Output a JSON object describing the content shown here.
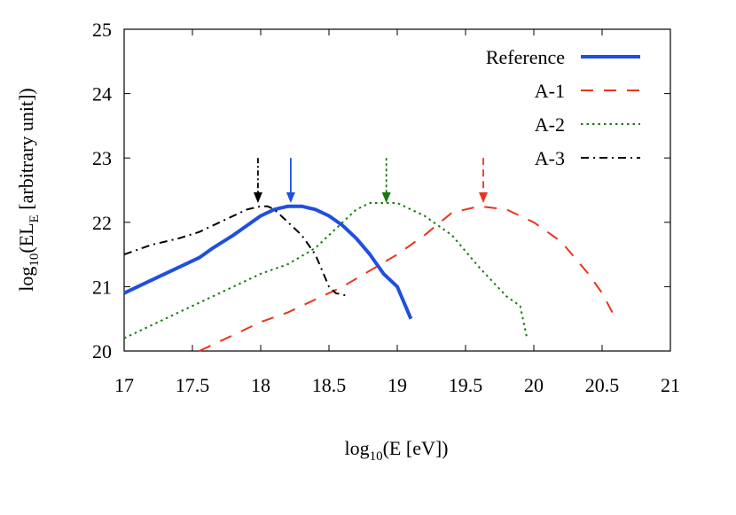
{
  "chart_data": {
    "type": "line",
    "title": "",
    "xlabel": {
      "base": "log",
      "sub": "10",
      "rest": "(E [eV])"
    },
    "ylabel": {
      "base": "log",
      "sub": "10",
      "mid": "(EL",
      "sub2": "E",
      "rest": " [arbitrary unit])"
    },
    "xlim": [
      17,
      21
    ],
    "ylim": [
      20,
      25
    ],
    "xticks": [
      17,
      17.5,
      18,
      18.5,
      19,
      19.5,
      20,
      20.5,
      21
    ],
    "xtick_labels": [
      "17",
      "17.5",
      "18",
      "18.5",
      "19",
      "19.5",
      "20",
      "20.5",
      "21"
    ],
    "yticks": [
      20,
      21,
      22,
      23,
      24,
      25
    ],
    "ytick_labels": [
      "20",
      "21",
      "22",
      "23",
      "24",
      "25"
    ],
    "legend_position": "top-right",
    "series": [
      {
        "name": "Reference",
        "color": "#1f4fe0",
        "style": "solid",
        "x": [
          17.0,
          17.2,
          17.4,
          17.55,
          17.65,
          17.8,
          17.9,
          18.0,
          18.1,
          18.2,
          18.25,
          18.3,
          18.4,
          18.5,
          18.6,
          18.7,
          18.8,
          18.9,
          19.0,
          19.1
        ],
        "y": [
          20.9,
          21.1,
          21.3,
          21.45,
          21.6,
          21.8,
          21.95,
          22.1,
          22.2,
          22.25,
          22.25,
          22.25,
          22.2,
          22.1,
          21.95,
          21.75,
          21.5,
          21.2,
          21.0,
          20.5
        ],
        "peak_marker": {
          "x": 18.22,
          "from": 23.0,
          "to": 22.3
        }
      },
      {
        "name": "A-1",
        "color": "#e8341c",
        "style": "dashed",
        "x": [
          17.55,
          17.8,
          18.0,
          18.2,
          18.4,
          18.6,
          18.8,
          19.0,
          19.2,
          19.4,
          19.6,
          19.8,
          20.0,
          20.2,
          20.4,
          20.5,
          20.6
        ],
        "y": [
          20.0,
          20.25,
          20.45,
          20.6,
          20.8,
          21.0,
          21.25,
          21.5,
          21.8,
          22.15,
          22.25,
          22.2,
          22.0,
          21.7,
          21.2,
          20.9,
          20.5
        ],
        "peak_marker": {
          "x": 19.63,
          "from": 23.0,
          "to": 22.3
        }
      },
      {
        "name": "A-2",
        "color": "#1a7a10",
        "style": "dotted",
        "x": [
          17.0,
          17.2,
          17.4,
          17.6,
          17.8,
          18.0,
          18.2,
          18.4,
          18.6,
          18.7,
          18.8,
          18.9,
          19.0,
          19.1,
          19.2,
          19.4,
          19.6,
          19.8,
          19.9,
          19.95
        ],
        "y": [
          20.2,
          20.4,
          20.6,
          20.8,
          21.0,
          21.2,
          21.35,
          21.6,
          22.0,
          22.2,
          22.3,
          22.3,
          22.3,
          22.2,
          22.1,
          21.8,
          21.3,
          20.85,
          20.7,
          20.2
        ],
        "peak_marker": {
          "x": 18.92,
          "from": 23.0,
          "to": 22.3
        }
      },
      {
        "name": "A-3",
        "color": "#000000",
        "style": "dashdot",
        "x": [
          17.0,
          17.2,
          17.4,
          17.55,
          17.65,
          17.8,
          17.9,
          18.0,
          18.05,
          18.1,
          18.2,
          18.3,
          18.4,
          18.5,
          18.55,
          18.65
        ],
        "y": [
          21.5,
          21.65,
          21.75,
          21.85,
          21.95,
          22.1,
          22.2,
          22.25,
          22.25,
          22.2,
          22.0,
          21.8,
          21.5,
          21.0,
          20.9,
          20.85
        ],
        "peak_marker": {
          "x": 17.98,
          "from": 23.0,
          "to": 22.3
        }
      }
    ]
  }
}
